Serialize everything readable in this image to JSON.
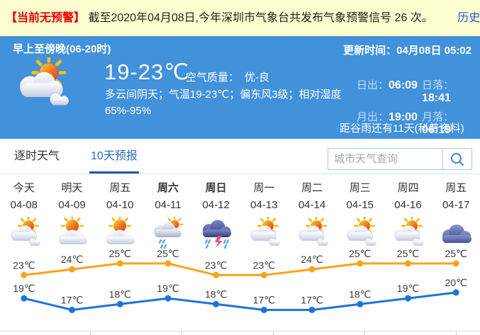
{
  "alert": {
    "badge": "【当前无预警】",
    "text": "截至2020年04月08日,今年深圳市气象台共发布气象预警信号 26 次。",
    "link": "历史预警查询"
  },
  "banner": {
    "period": "早上至傍晚(06-20时)",
    "update": "更新时间：04月08日 05:02",
    "temp_range": "19-23℃",
    "air_label": "空气质量：",
    "air_value": "优-良",
    "desc_line1": "多云间阴天；气温19-23℃；偏东风3级；相对湿度",
    "desc_line2": "65%-95%",
    "current_icon": "sun-clouds",
    "sun_moon": [
      {
        "label": "日出：",
        "value": "06:09"
      },
      {
        "label": "日落：",
        "value": "18:41"
      },
      {
        "label": "月出：",
        "value": "19:00"
      },
      {
        "label": "月落：",
        "value": "06:19"
      }
    ],
    "solar_term": "距谷雨还有11天",
    "solar_link": "(科普资料)"
  },
  "tabs": {
    "items": [
      {
        "label": "逐时天气",
        "active": false
      },
      {
        "label": "10天预报",
        "active": true
      }
    ]
  },
  "search": {
    "placeholder": "城市天气查询",
    "icon": "search-icon"
  },
  "forecast": {
    "unit": "℃",
    "days": [
      {
        "day": "今天",
        "date": "04-08",
        "icon": "sun-clouds",
        "weekend": false,
        "high": 23,
        "low": 19
      },
      {
        "day": "明天",
        "date": "04-09",
        "icon": "sun-cloud",
        "weekend": false,
        "high": 24,
        "low": 17
      },
      {
        "day": "周五",
        "date": "04-10",
        "icon": "sun-cloud",
        "weekend": false,
        "high": 25,
        "low": 18
      },
      {
        "day": "周六",
        "date": "04-11",
        "icon": "rain-sun",
        "weekend": true,
        "high": 25,
        "low": 19
      },
      {
        "day": "周日",
        "date": "04-12",
        "icon": "thunderstorm",
        "weekend": true,
        "high": 23,
        "low": 18
      },
      {
        "day": "周一",
        "date": "04-13",
        "icon": "sun-clouds",
        "weekend": false,
        "high": 23,
        "low": 17
      },
      {
        "day": "周二",
        "date": "04-14",
        "icon": "sun-clouds",
        "weekend": false,
        "high": 24,
        "low": 17
      },
      {
        "day": "周三",
        "date": "04-15",
        "icon": "sun-clouds",
        "weekend": false,
        "high": 25,
        "low": 18
      },
      {
        "day": "周四",
        "date": "04-16",
        "icon": "sun-clouds",
        "weekend": false,
        "high": 25,
        "low": 19
      },
      {
        "day": "周五",
        "date": "04-17",
        "icon": "cloud",
        "weekend": false,
        "high": 25,
        "low": 20
      }
    ]
  },
  "chart_data": {
    "type": "line",
    "categories": [
      "04-08",
      "04-09",
      "04-10",
      "04-11",
      "04-12",
      "04-13",
      "04-14",
      "04-15",
      "04-16",
      "04-17"
    ],
    "series": [
      {
        "name": "high",
        "color": "#fba21b",
        "values": [
          23,
          24,
          25,
          25,
          23,
          23,
          24,
          25,
          25,
          25
        ]
      },
      {
        "name": "low",
        "color": "#1b74d6",
        "values": [
          19,
          17,
          18,
          19,
          18,
          17,
          17,
          18,
          19,
          20
        ]
      }
    ],
    "unit": "℃",
    "point_labels": true,
    "grid": false,
    "legend": "none",
    "ylim": [
      15,
      27
    ]
  },
  "colors": {
    "banner_bg": "#4191db",
    "alert_bg": "#feffd0",
    "alert_red": "#e60000",
    "link_blue": "#2353cc",
    "tab_active": "#2e6cb5",
    "high_line": "#fba21b",
    "low_line": "#1b74d6"
  }
}
